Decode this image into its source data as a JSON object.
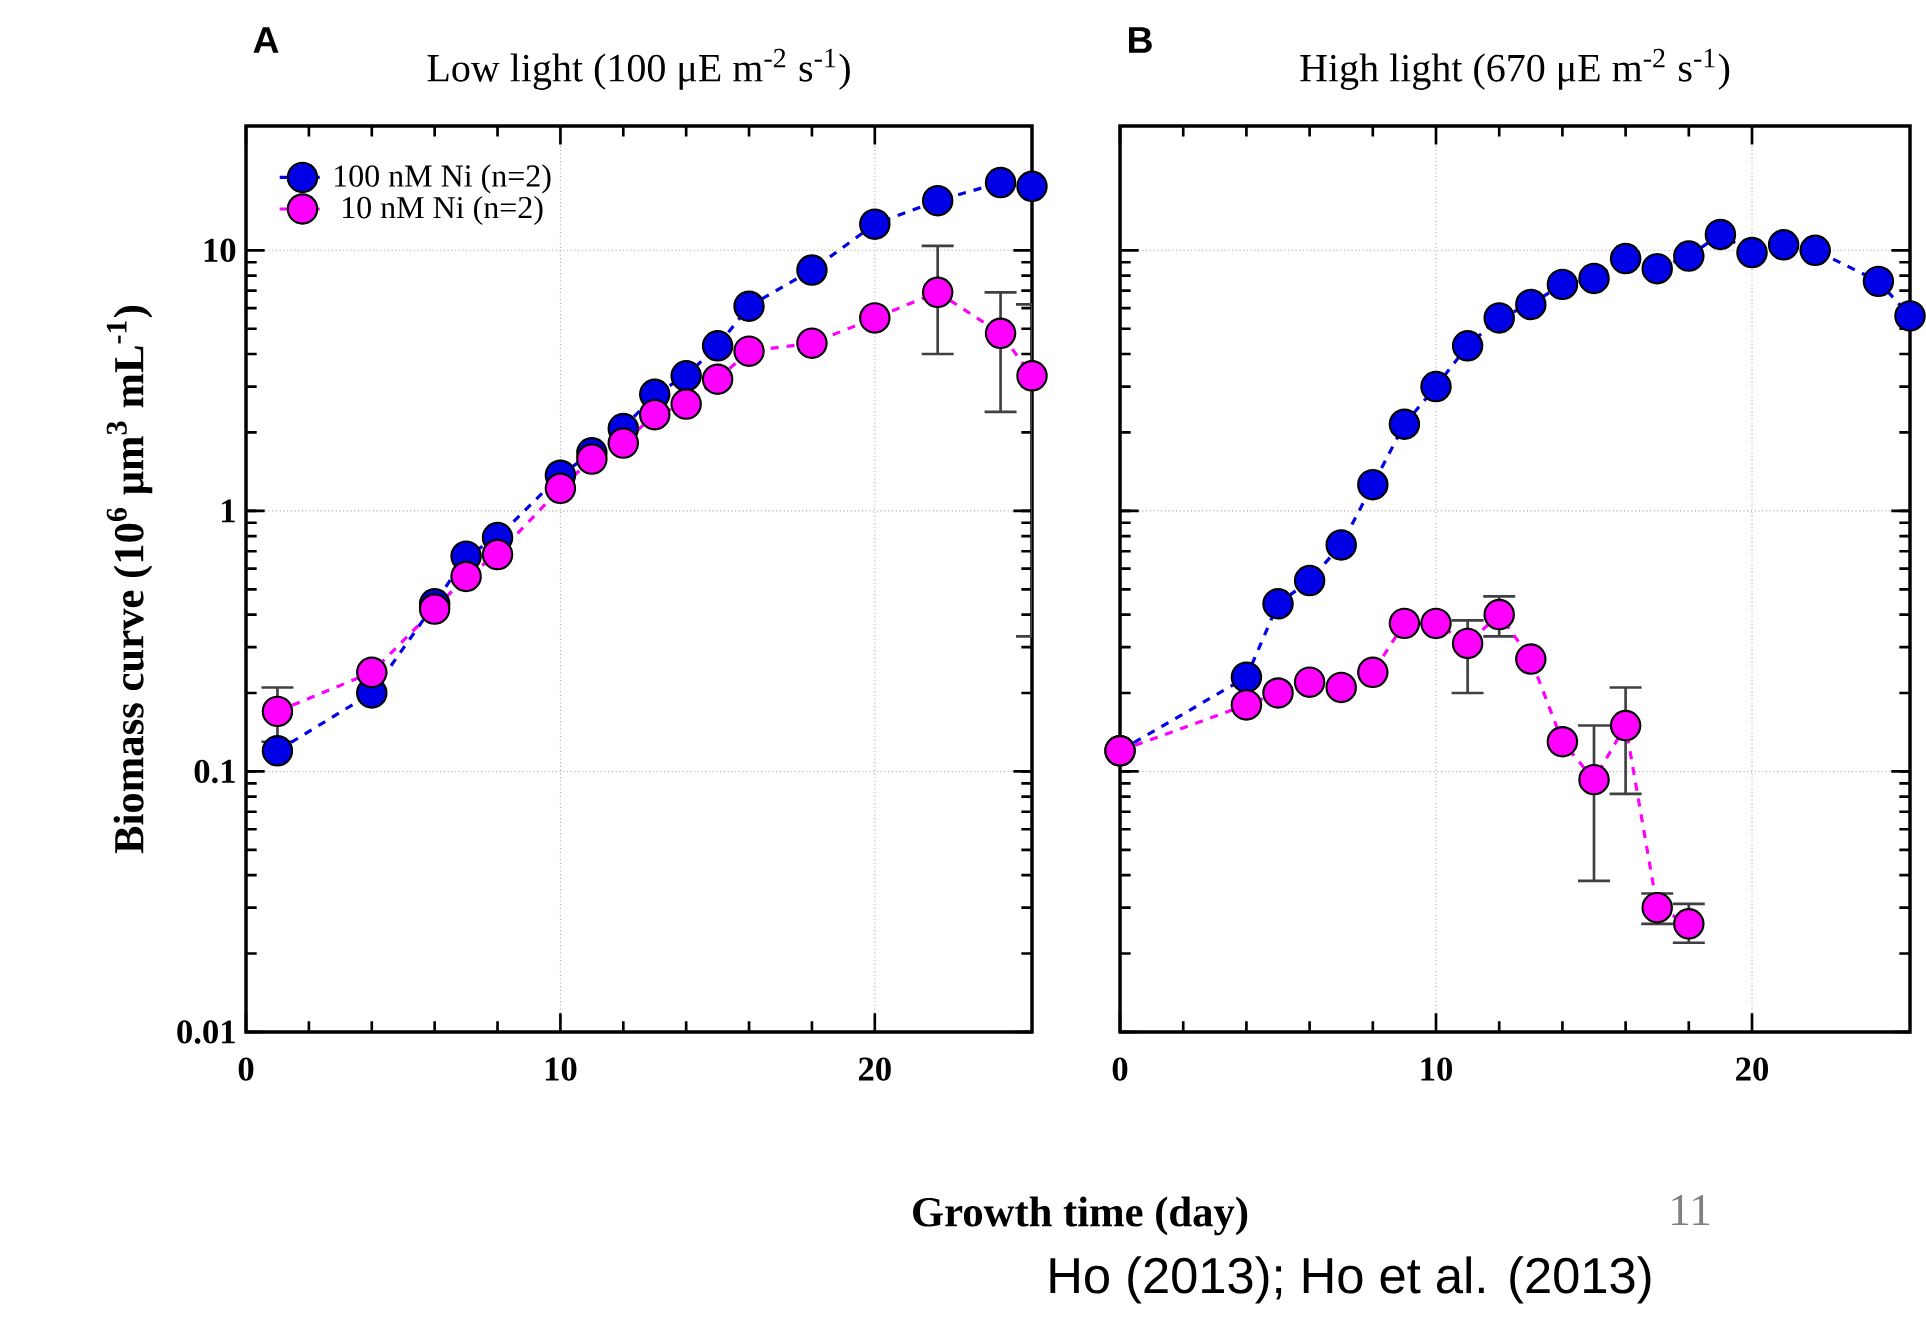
{
  "chart_data": [
    {
      "type": "line",
      "title": "Low light (100 μE m$^{-2}$ s$^{-1}$)",
      "xlabel": "Growth time (day)",
      "ylabel": "Biomass curve (10$^{6}$ μm$^{3}$ mL$^{-1}$)",
      "annotations": [
        "A"
      ],
      "xlim": [
        0,
        25
      ],
      "xticks": [
        0,
        10,
        20
      ],
      "ylim": [
        0.01,
        30
      ],
      "yticks": [
        0.01,
        0.1,
        1,
        10
      ],
      "log": true,
      "grid": true,
      "legend": "top left",
      "marker": "circle",
      "line_style": "dashed",
      "series": [
        {
          "name": "100 nM Ni (n=2)",
          "color": "#0000e6",
          "x": [
            1,
            4,
            6,
            7,
            8,
            10,
            11,
            12,
            13,
            14,
            15,
            16,
            18,
            20,
            22,
            24,
            25
          ],
          "values": [
            0.12,
            0.2,
            0.44,
            0.67,
            0.79,
            1.37,
            1.67,
            2.07,
            2.8,
            3.3,
            4.3,
            6.1,
            8.4,
            12.6,
            15.5,
            18.2,
            17.6
          ]
        },
        {
          "name": "10 nM Ni (n=2)",
          "color": "#ff00ff",
          "x": [
            1,
            4,
            6,
            7,
            8,
            10,
            11,
            12,
            13,
            14,
            15,
            16,
            18,
            20,
            22,
            24,
            25
          ],
          "values": [
            0.17,
            0.24,
            0.42,
            0.56,
            0.68,
            1.22,
            1.58,
            1.82,
            2.34,
            2.57,
            3.2,
            4.1,
            4.4,
            5.5,
            6.9,
            4.8,
            3.3
          ],
          "errors": [
            [
              0.13,
              0.21
            ],
            null,
            null,
            null,
            null,
            null,
            null,
            null,
            null,
            null,
            null,
            null,
            null,
            null,
            [
              4.0,
              10.4
            ],
            [
              2.4,
              6.9
            ],
            [
              0.33,
              6.2
            ]
          ]
        }
      ]
    },
    {
      "type": "line",
      "title": "High light (670 μE m$^{-2}$ s$^{-1}$)",
      "annotations": [
        "B",
        "11",
        "Ho (2013); Ho et al. (2013)"
      ],
      "xlim": [
        0,
        25
      ],
      "xticks": [
        0,
        10,
        20
      ],
      "ylim": [
        0.01,
        30
      ],
      "yticks": [
        0.01,
        0.1,
        1,
        10
      ],
      "log": true,
      "grid": true,
      "tick_labels": "x",
      "marker": "circle",
      "line_style": "dashed",
      "series": [
        {
          "color": "#0000e6",
          "x": [
            0,
            4,
            5,
            6,
            7,
            8,
            9,
            10,
            11,
            12,
            13,
            14,
            15,
            16,
            17,
            18,
            19,
            20,
            21,
            22,
            24,
            25
          ],
          "values": [
            0.12,
            0.23,
            0.44,
            0.54,
            0.74,
            1.26,
            2.15,
            3.0,
            4.3,
            5.5,
            6.2,
            7.4,
            7.8,
            9.3,
            8.5,
            9.5,
            11.5,
            9.8,
            10.5,
            10.0,
            7.6,
            5.6
          ]
        },
        {
          "color": "#ff00ff",
          "x": [
            0,
            4,
            5,
            6,
            7,
            8,
            9,
            10,
            11,
            12,
            13,
            14,
            15,
            16,
            17,
            18
          ],
          "values": [
            0.12,
            0.18,
            0.2,
            0.22,
            0.21,
            0.24,
            0.37,
            0.37,
            0.31,
            0.4,
            0.27,
            0.13,
            0.093,
            0.15,
            0.03,
            0.026
          ],
          "errors": [
            null,
            null,
            null,
            null,
            null,
            null,
            null,
            null,
            [
              0.2,
              0.38
            ],
            [
              0.33,
              0.47
            ],
            null,
            null,
            [
              0.038,
              0.15
            ],
            [
              0.082,
              0.21
            ],
            [
              0.026,
              0.034
            ],
            [
              0.022,
              0.031
            ]
          ]
        }
      ]
    }
  ]
}
